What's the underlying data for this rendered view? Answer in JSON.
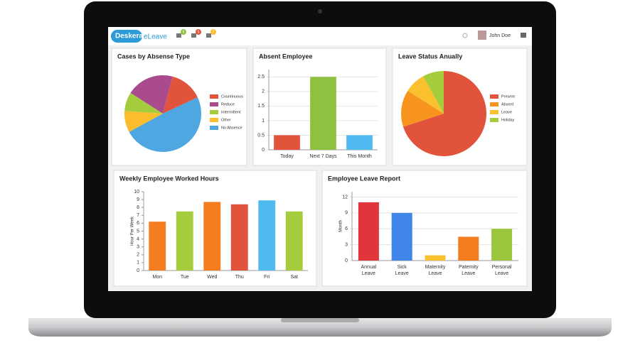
{
  "app": {
    "logo": "Deskera",
    "product": "eLeave",
    "badges": [
      6,
      5,
      7
    ],
    "user": "John Doe"
  },
  "chart_data": [
    {
      "type": "pie",
      "title": "Cases by Absense Type",
      "categories": [
        "Countinuous",
        "Reduce",
        "Intermittent",
        "Other",
        "No Absence"
      ],
      "values": [
        14,
        20,
        8,
        9,
        49
      ],
      "colors": [
        "#e2533b",
        "#a94b8c",
        "#a5cc3c",
        "#fbbd2e",
        "#4ea7e0"
      ]
    },
    {
      "type": "bar",
      "title": "Absent Employee",
      "categories": [
        "Today",
        "Next 7 Days",
        "This Month"
      ],
      "values": [
        0.5,
        2.5,
        0.5
      ],
      "colors": [
        "#e2533b",
        "#8dc13f",
        "#4ebaf0"
      ],
      "ylim": [
        0,
        2.75
      ],
      "yticks": [
        0,
        0.5,
        1,
        1.5,
        2,
        2.5
      ],
      "grid": true
    },
    {
      "type": "pie",
      "title": "Leave Status Anually",
      "categories": [
        "Present",
        "Absent",
        "Leave",
        "Holiday"
      ],
      "values": [
        70,
        14,
        8,
        8
      ],
      "colors": [
        "#e2533b",
        "#f7941d",
        "#fbc02d",
        "#a5cc3c"
      ]
    },
    {
      "type": "bar",
      "title": "Weekly Employee Worked Hours",
      "ylabel": "Hour Per Week",
      "categories": [
        "Mon",
        "Tue",
        "Wed",
        "Thu",
        "Fri",
        "Sat"
      ],
      "values": [
        6.2,
        7.5,
        8.7,
        8.4,
        8.9,
        7.5
      ],
      "colors": [
        "#f57c1f",
        "#a5cc3c",
        "#f57c1f",
        "#e2533b",
        "#4ebaf0",
        "#a5cc3c"
      ],
      "ylim": [
        0,
        10
      ],
      "yticks": [
        0,
        1,
        2,
        3,
        4,
        5,
        6,
        7,
        8,
        9,
        10
      ],
      "grid": false
    },
    {
      "type": "bar",
      "title": "Employee Leave Report",
      "ylabel": "Month",
      "categories": [
        "Annual Leave",
        "Sick Leave",
        "Maternity Leave",
        "Paternity Leave",
        "Personal Leave"
      ],
      "values": [
        11,
        9,
        1,
        4.5,
        6
      ],
      "colors": [
        "#e2353b",
        "#3f86e8",
        "#fbc02d",
        "#f57c1f",
        "#9bc53d"
      ],
      "ylim": [
        0,
        13
      ],
      "yticks": [
        0,
        3,
        6,
        9,
        12
      ],
      "grid": true
    }
  ]
}
